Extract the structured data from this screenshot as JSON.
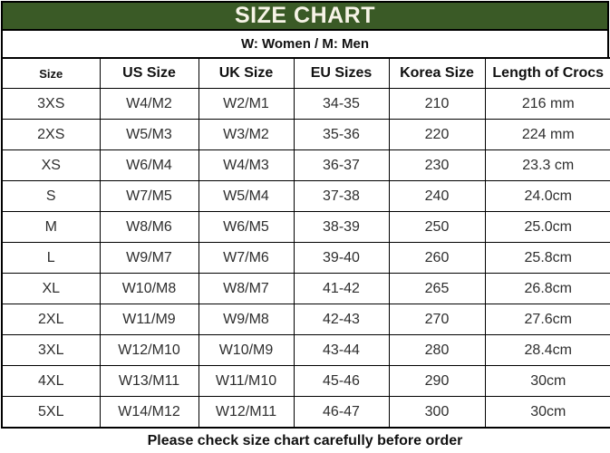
{
  "title": "SIZE CHART",
  "subtitle": "W: Women / M: Men",
  "footer": "Please check size chart carefully before order",
  "colors": {
    "header_bg": "#3A5A26",
    "header_text": "#F6F3E6",
    "border": "#000000",
    "cell_text": "#2e2e2e"
  },
  "table": {
    "columns": [
      "Size",
      "US Size",
      "UK Size",
      "EU Sizes",
      "Korea Size",
      "Length of Crocs"
    ],
    "rows": [
      [
        "3XS",
        "W4/M2",
        "W2/M1",
        "34-35",
        "210",
        "216 mm"
      ],
      [
        "2XS",
        "W5/M3",
        "W3/M2",
        "35-36",
        "220",
        "224 mm"
      ],
      [
        "XS",
        "W6/M4",
        "W4/M3",
        "36-37",
        "230",
        "23.3 cm"
      ],
      [
        "S",
        "W7/M5",
        "W5/M4",
        "37-38",
        "240",
        "24.0cm"
      ],
      [
        "M",
        "W8/M6",
        "W6/M5",
        "38-39",
        "250",
        "25.0cm"
      ],
      [
        "L",
        "W9/M7",
        "W7/M6",
        "39-40",
        "260",
        "25.8cm"
      ],
      [
        "XL",
        "W10/M8",
        "W8/M7",
        "41-42",
        "265",
        "26.8cm"
      ],
      [
        "2XL",
        "W11/M9",
        "W9/M8",
        "42-43",
        "270",
        "27.6cm"
      ],
      [
        "3XL",
        "W12/M10",
        "W10/M9",
        "43-44",
        "280",
        "28.4cm"
      ],
      [
        "4XL",
        "W13/M11",
        "W11/M10",
        "45-46",
        "290",
        "30cm"
      ],
      [
        "5XL",
        "W14/M12",
        "W12/M11",
        "46-47",
        "300",
        "30cm"
      ]
    ]
  }
}
